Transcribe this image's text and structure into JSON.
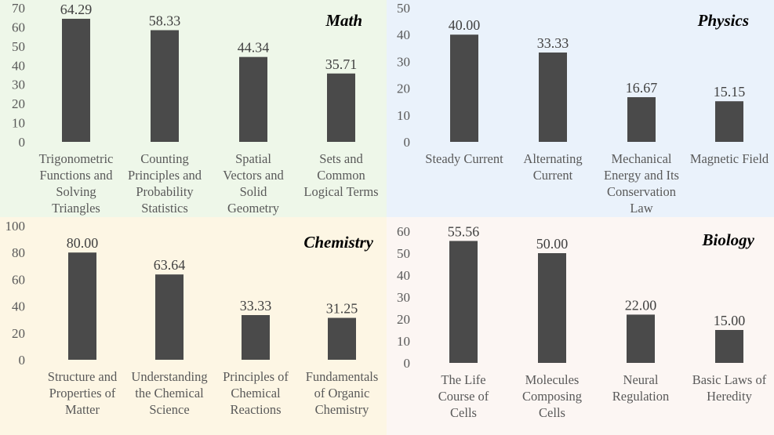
{
  "bar_color": "#4a4a4a",
  "chart_data": [
    {
      "type": "bar",
      "title": "Math",
      "categories": [
        [
          "Trigonometric",
          "Functions and",
          "Solving",
          "Triangles"
        ],
        [
          "Counting",
          "Principles and",
          "Probability",
          "Statistics"
        ],
        [
          "Spatial",
          "Vectors and",
          "Solid",
          "Geometry"
        ],
        [
          "Sets and",
          "Common",
          "Logical Terms"
        ]
      ],
      "values": [
        64.29,
        58.33,
        44.34,
        35.71
      ],
      "value_labels": [
        "64.29",
        "58.33",
        "44.34",
        "35.71"
      ],
      "ylim": [
        0,
        70
      ],
      "yticks": [
        "0",
        "10",
        "20",
        "30",
        "40",
        "50",
        "60",
        "70"
      ],
      "background": "#eef7e9"
    },
    {
      "type": "bar",
      "title": "Physics",
      "categories": [
        [
          "Steady Current"
        ],
        [
          "Alternating",
          "Current"
        ],
        [
          "Mechanical",
          "Energy and Its",
          "Conservation",
          "Law"
        ],
        [
          "Magnetic Field"
        ]
      ],
      "values": [
        40.0,
        33.33,
        16.67,
        15.15
      ],
      "value_labels": [
        "40.00",
        "33.33",
        "16.67",
        "15.15"
      ],
      "ylim": [
        0,
        50
      ],
      "yticks": [
        "0",
        "10",
        "20",
        "30",
        "40",
        "50"
      ],
      "background": "#eaf2fb"
    },
    {
      "type": "bar",
      "title": "Chemistry",
      "categories": [
        [
          "Structure and",
          "Properties of",
          "Matter"
        ],
        [
          "Understanding",
          "the Chemical",
          "Science"
        ],
        [
          "Principles of",
          "Chemical",
          "Reactions"
        ],
        [
          "Fundamentals",
          "of Organic",
          "Chemistry"
        ]
      ],
      "values": [
        80.0,
        63.64,
        33.33,
        31.25
      ],
      "value_labels": [
        "80.00",
        "63.64",
        "33.33",
        "31.25"
      ],
      "ylim": [
        0,
        100
      ],
      "yticks": [
        "0",
        "20",
        "40",
        "60",
        "80",
        "100"
      ],
      "background": "#fdf6e4"
    },
    {
      "type": "bar",
      "title": "Biology",
      "categories": [
        [
          "The Life",
          "Course of",
          "Cells"
        ],
        [
          "Molecules",
          "Composing",
          "Cells"
        ],
        [
          "Neural",
          "Regulation"
        ],
        [
          "Basic Laws of",
          "Heredity"
        ]
      ],
      "values": [
        55.56,
        50.0,
        22.0,
        15.0
      ],
      "value_labels": [
        "55.56",
        "50.00",
        "22.00",
        "15.00"
      ],
      "ylim": [
        0,
        60
      ],
      "yticks": [
        "0",
        "10",
        "20",
        "30",
        "40",
        "50",
        "60"
      ],
      "background": "#fcf6f3"
    }
  ]
}
